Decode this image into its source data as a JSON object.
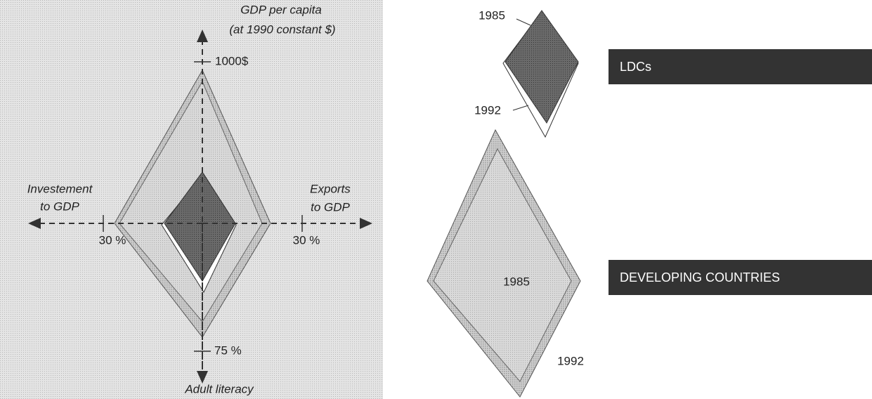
{
  "axes": {
    "top": {
      "title": "GDP per capita",
      "subtitle": "(at 1990 constant $)",
      "tick": "1000$"
    },
    "left": {
      "title": [
        "Investement",
        "to GDP"
      ],
      "tick": "30 %"
    },
    "right": {
      "title": [
        "Exports",
        "to GDP"
      ],
      "tick": "30 %"
    },
    "bottom": {
      "title": "Adult literacy",
      "tick": "75 %"
    }
  },
  "ldc_key": {
    "year_1985": "1985",
    "year_1992": "1992"
  },
  "dev_key": {
    "year_1985": "1985",
    "year_1992": "1992"
  },
  "groups": [
    "LDCs",
    "DEVELOPING COUNTRIES"
  ]
}
